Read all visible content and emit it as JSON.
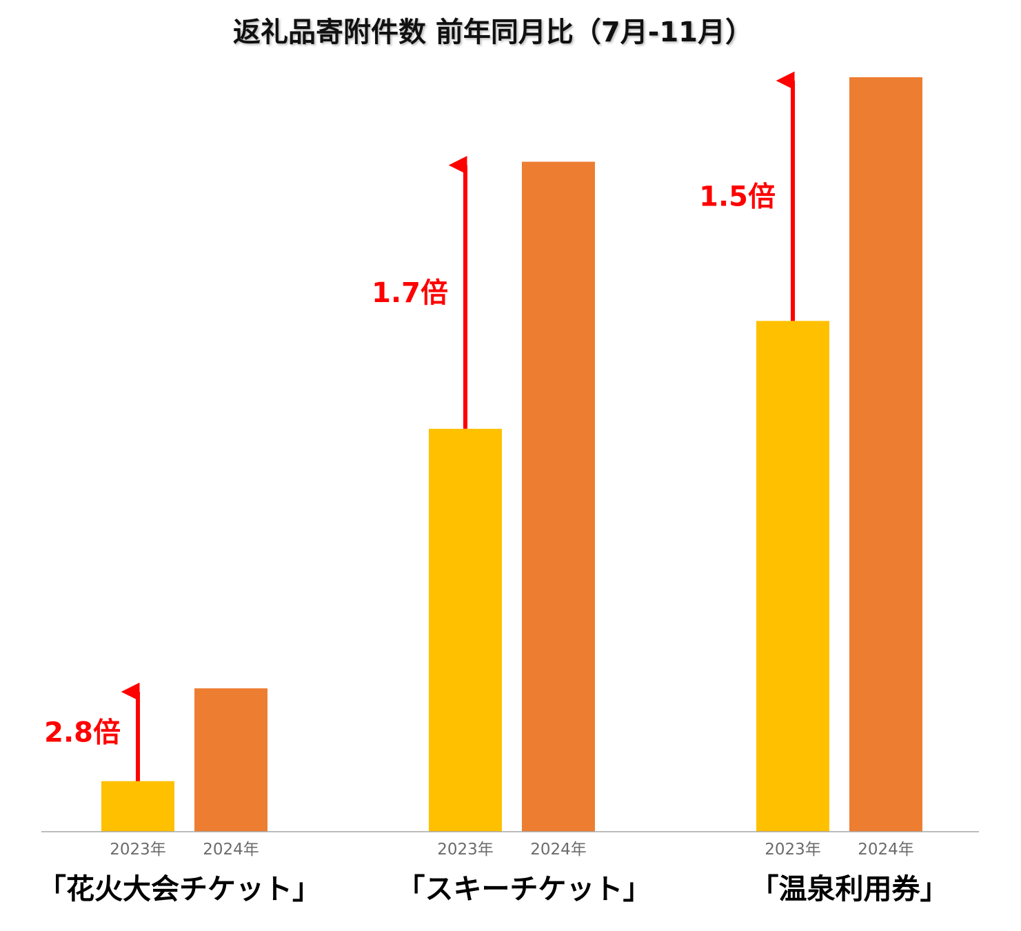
{
  "chart_data": {
    "type": "bar",
    "title": "返礼品寄附件数 前年同月比（7月-11月）",
    "xlabel": "",
    "ylabel": "",
    "ylim": [
      0,
      100
    ],
    "y_axis_shown": false,
    "grid": false,
    "categories": [
      "「花火大会チケット」",
      "「スキーチケット」",
      "「温泉利用券」"
    ],
    "series": [
      {
        "name": "2023年",
        "color": "#FFC000",
        "values": [
          6.7,
          53.4,
          67.7
        ]
      },
      {
        "name": "2024年",
        "color": "#ED7D31",
        "values": [
          19.0,
          88.8,
          100.0
        ]
      }
    ],
    "annotations": [
      {
        "category": "「花火大会チケット」",
        "text": "2.8倍",
        "arrow_from": 6.7,
        "arrow_to": 19.0
      },
      {
        "category": "「スキーチケット」",
        "text": "1.7倍",
        "arrow_from": 53.4,
        "arrow_to": 88.8
      },
      {
        "category": "「温泉利用券」",
        "text": "1.5倍",
        "arrow_from": 67.7,
        "arrow_to": 100.0
      }
    ],
    "colors": {
      "arrow": "#FF0000",
      "ratio_text": "#FF0000",
      "axis_line": "#A6A6A6",
      "tick_text": "#6B6B6B"
    }
  }
}
